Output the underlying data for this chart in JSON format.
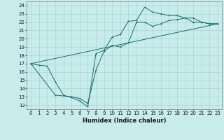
{
  "title": "",
  "xlabel": "Humidex (Indice chaleur)",
  "ylabel": "",
  "bg_color": "#c8ecec",
  "grid_color": "#a8d4d4",
  "line_color": "#1a6b6b",
  "xlim": [
    -0.5,
    23.5
  ],
  "ylim": [
    11.5,
    24.5
  ],
  "xticks": [
    0,
    1,
    2,
    3,
    4,
    5,
    6,
    7,
    8,
    9,
    10,
    11,
    12,
    13,
    14,
    15,
    16,
    17,
    18,
    19,
    20,
    21,
    22,
    23
  ],
  "yticks": [
    12,
    13,
    14,
    15,
    16,
    17,
    18,
    19,
    20,
    21,
    22,
    23,
    24
  ],
  "line1_x": [
    0,
    1,
    2,
    3,
    4,
    5,
    6,
    7,
    8,
    9,
    10,
    11,
    12,
    13,
    14,
    15,
    16,
    17,
    18,
    19,
    20,
    21,
    22,
    23
  ],
  "line1_y": [
    17.0,
    16.8,
    16.7,
    14.8,
    13.2,
    12.9,
    12.5,
    11.8,
    18.2,
    18.6,
    20.2,
    20.5,
    22.1,
    22.2,
    23.8,
    23.2,
    23.0,
    22.8,
    22.8,
    22.5,
    22.0,
    22.0,
    21.8,
    21.8
  ],
  "line2_x": [
    0,
    3,
    5,
    6,
    7,
    8,
    9,
    10,
    11,
    12,
    13,
    14,
    15,
    16,
    17,
    18,
    19,
    20,
    21,
    22,
    23
  ],
  "line2_y": [
    17.0,
    13.2,
    13.0,
    12.8,
    12.2,
    16.2,
    18.5,
    19.2,
    19.0,
    19.5,
    22.0,
    22.0,
    21.5,
    21.8,
    22.2,
    22.3,
    22.5,
    22.5,
    22.0,
    21.8,
    21.8
  ],
  "line3_x": [
    0,
    23
  ],
  "line3_y": [
    17.0,
    21.8
  ],
  "xlabel_fontsize": 6,
  "tick_fontsize": 5
}
